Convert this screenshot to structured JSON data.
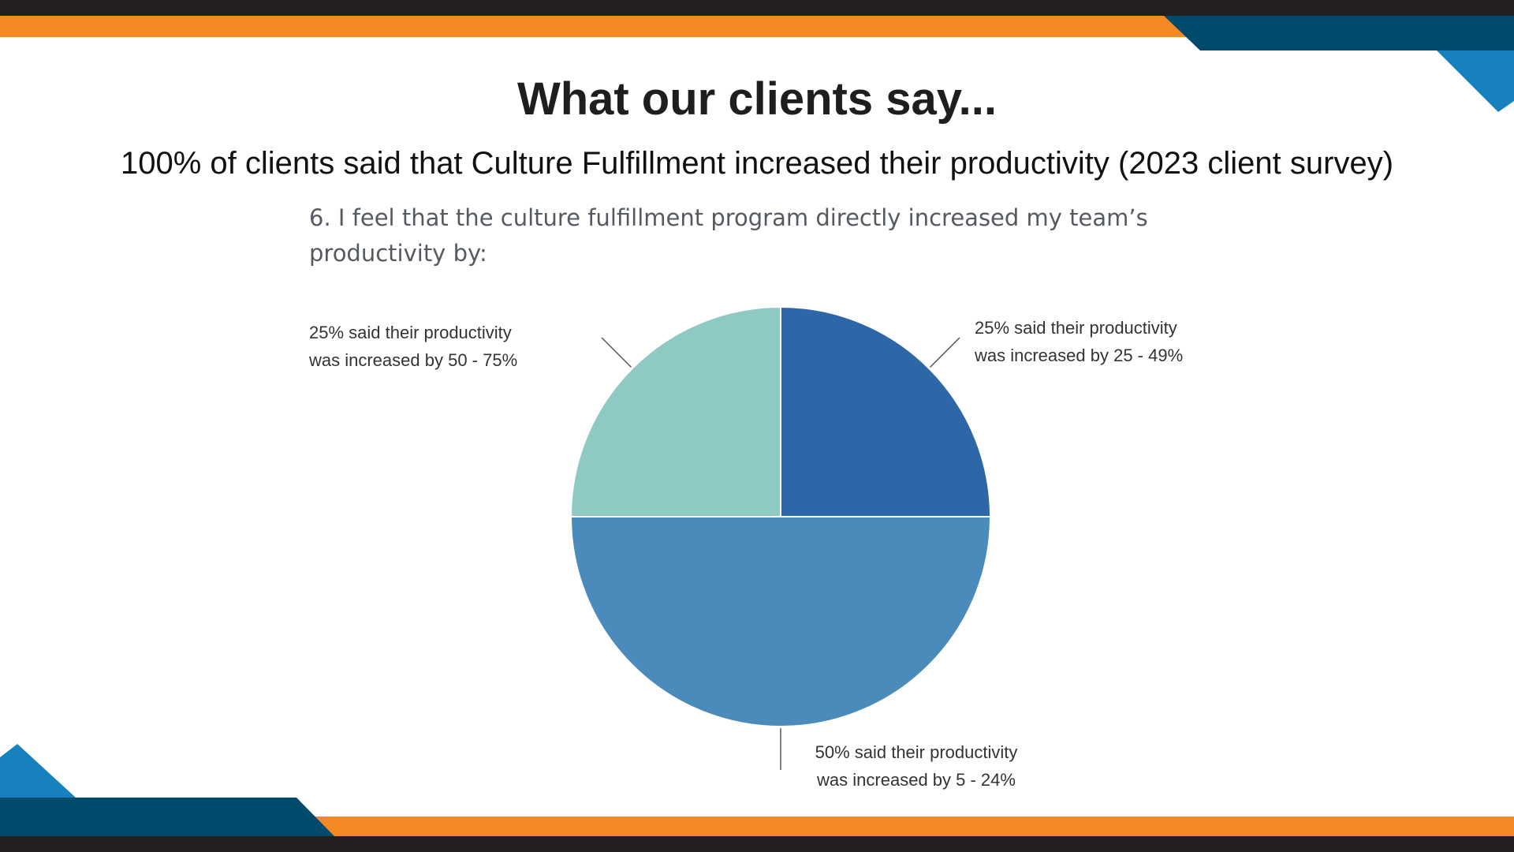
{
  "slide": {
    "title": "What our clients say...",
    "subtitle": "100% of clients said that Culture Fulfillment increased their productivity (2023 client survey)"
  },
  "chart_data": {
    "type": "pie",
    "title": "6. I feel that the culture fulfillment program directly increased my team’s productivity by:",
    "categories": [
      "25% said their productivity was increased by 25 - 49%",
      "50% said their productivity was increased by 5 - 24%",
      "25% said their productivity was increased by 50 - 75%"
    ],
    "values": [
      25,
      50,
      25
    ],
    "colors": [
      "#2e67a8",
      "#4a8bbb",
      "#8fc9c3"
    ]
  }
}
